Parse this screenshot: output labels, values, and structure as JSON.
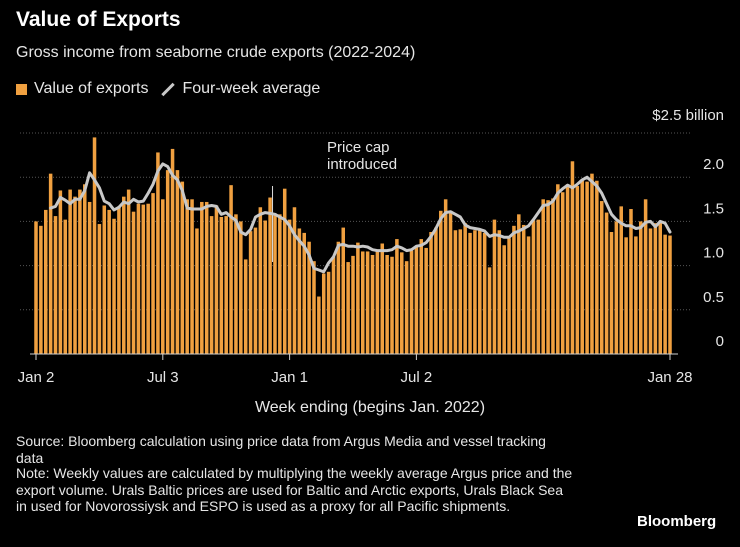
{
  "chart_data": {
    "type": "bar",
    "title": "Value of Exports",
    "subtitle": "Gross income from seaborne crude exports (2022-2024)",
    "xlabel": "Week ending (begins Jan. 2022)",
    "ylabel": "",
    "y_unit_label": "$2.5 billion",
    "ylim": [
      0,
      2.5
    ],
    "y_ticks": [
      "2.0",
      "1.5",
      "1.0",
      "0.5",
      "0"
    ],
    "x_ticks": [
      "Jan 2",
      "Jul 3",
      "Jan 1",
      "Jul 2",
      "Jan 28"
    ],
    "legend": [
      {
        "label": "Value of exports",
        "mark": "bar",
        "color": "#f0a040"
      },
      {
        "label": "Four-week average",
        "mark": "line",
        "color": "#c8c8c8"
      }
    ],
    "annotation": {
      "text_line1": "Price cap",
      "text_line2": "introduced",
      "week_index": 48
    },
    "series": [
      {
        "name": "Value of exports",
        "type": "bar",
        "values": [
          1.5,
          1.45,
          1.63,
          2.04,
          1.56,
          1.85,
          1.52,
          1.86,
          1.78,
          1.86,
          1.92,
          1.72,
          2.45,
          1.47,
          1.68,
          1.63,
          1.53,
          1.67,
          1.78,
          1.86,
          1.61,
          1.7,
          1.69,
          1.7,
          1.82,
          2.28,
          1.75,
          2.08,
          2.32,
          2.08,
          1.95,
          1.75,
          1.75,
          1.42,
          1.72,
          1.72,
          1.56,
          1.68,
          1.55,
          1.56,
          1.91,
          1.58,
          1.5,
          1.07,
          1.39,
          1.43,
          1.66,
          1.51,
          1.77,
          1.59,
          1.58,
          1.87,
          1.52,
          1.66,
          1.42,
          1.37,
          1.27,
          1.05,
          0.65,
          0.91,
          0.93,
          1.1,
          1.27,
          1.43,
          1.04,
          1.11,
          1.26,
          1.16,
          1.16,
          1.12,
          1.17,
          1.25,
          1.12,
          1.1,
          1.3,
          1.15,
          1.05,
          1.17,
          1.22,
          1.3,
          1.2,
          1.38,
          1.43,
          1.62,
          1.75,
          1.62,
          1.4,
          1.41,
          1.48,
          1.37,
          1.4,
          1.41,
          1.37,
          0.98,
          1.52,
          1.4,
          1.23,
          1.31,
          1.45,
          1.58,
          1.46,
          1.33,
          1.51,
          1.52,
          1.75,
          1.74,
          1.76,
          1.92,
          1.83,
          1.92,
          2.18,
          1.9,
          1.96,
          1.95,
          2.04,
          1.96,
          1.73,
          1.6,
          1.38,
          1.5,
          1.67,
          1.32,
          1.64,
          1.33,
          1.5,
          1.75,
          1.42,
          1.48,
          1.5,
          1.35,
          1.34
        ]
      },
      {
        "name": "Four-week average",
        "type": "line",
        "values": [
          null,
          null,
          null,
          1.65,
          1.67,
          1.77,
          1.74,
          1.7,
          1.75,
          1.75,
          1.85,
          2.05,
          1.97,
          1.88,
          1.73,
          1.7,
          1.63,
          1.66,
          1.72,
          1.7,
          1.75,
          1.72,
          1.73,
          1.82,
          1.92,
          2.07,
          2.15,
          2.12,
          2.02,
          1.97,
          1.85,
          1.65,
          1.64,
          1.64,
          1.64,
          1.67,
          1.68,
          1.67,
          1.58,
          1.6,
          1.55,
          1.51,
          1.38,
          1.35,
          1.41,
          1.55,
          1.58,
          1.6,
          1.59,
          1.58,
          1.55,
          1.52,
          1.45,
          1.35,
          1.28,
          1.22,
          1.12,
          0.97,
          0.95,
          0.93,
          1.03,
          1.1,
          1.23,
          1.24,
          1.22,
          1.22,
          1.21,
          1.22,
          1.21,
          1.18,
          1.17,
          1.17,
          1.17,
          1.18,
          1.22,
          1.2,
          1.17,
          1.18,
          1.22,
          1.23,
          1.26,
          1.33,
          1.42,
          1.53,
          1.6,
          1.61,
          1.58,
          1.55,
          1.46,
          1.43,
          1.42,
          1.41,
          1.39,
          1.33,
          1.35,
          1.34,
          1.32,
          1.32,
          1.37,
          1.39,
          1.42,
          1.45,
          1.52,
          1.6,
          1.68,
          1.69,
          1.73,
          1.82,
          1.87,
          1.91,
          1.88,
          1.92,
          1.97,
          2.0,
          1.95,
          1.9,
          1.82,
          1.7,
          1.58,
          1.52,
          1.48,
          1.45,
          1.45,
          1.42,
          1.43,
          1.49,
          1.5,
          1.44,
          1.5,
          1.48,
          1.38
        ]
      }
    ]
  },
  "footer": {
    "source": "Source: Bloomberg calculation using price data from Argus Media and vessel tracking data",
    "note": "Note: Weekly values are calculated by multiplying the weekly average Argus price and the export volume. Urals Baltic prices are used for Baltic and Arctic exports, Urals Black Sea in used for Novorossiysk and ESPO is used as a proxy for all Pacific shipments.",
    "brand": "Bloomberg"
  },
  "colors": {
    "background": "#000000",
    "bar": "#f0a040",
    "average_line": "#c8c8c8",
    "grid": "#555555",
    "text": "#e6e6e6"
  }
}
